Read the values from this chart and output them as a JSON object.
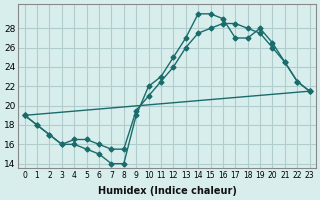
{
  "xlabel": "Humidex (Indice chaleur)",
  "bg_color": "#d8eeed",
  "grid_color": "#b0cccc",
  "line_color": "#1a6b6b",
  "line1_x": [
    0,
    1,
    2,
    3,
    4,
    5,
    6,
    7,
    8,
    9,
    10,
    11,
    12,
    13,
    14,
    15,
    16,
    17,
    18,
    19,
    20,
    21,
    22,
    23
  ],
  "line1_y": [
    19.0,
    18.0,
    17.0,
    16.0,
    16.0,
    15.5,
    15.0,
    14.0,
    14.0,
    19.0,
    22.0,
    23.0,
    25.0,
    27.0,
    29.5,
    29.5,
    29.0,
    27.0,
    27.0,
    28.0,
    26.5,
    24.5,
    22.5,
    21.5
  ],
  "line2_x": [
    0,
    1,
    2,
    3,
    4,
    5,
    6,
    7,
    8,
    9,
    10,
    11,
    12,
    13,
    14,
    15,
    16,
    17,
    18,
    19,
    20,
    21,
    22,
    23
  ],
  "line2_y": [
    19.0,
    18.0,
    17.0,
    16.0,
    16.5,
    16.5,
    16.0,
    15.5,
    15.5,
    19.5,
    21.0,
    22.5,
    24.0,
    26.0,
    27.5,
    28.0,
    28.5,
    28.5,
    28.0,
    27.5,
    26.0,
    24.5,
    22.5,
    21.5
  ],
  "line3_x": [
    0,
    23
  ],
  "line3_y": [
    19.0,
    21.5
  ],
  "ylim": [
    13.5,
    30.5
  ],
  "xlim": [
    -0.5,
    23.5
  ],
  "yticks": [
    14,
    16,
    18,
    20,
    22,
    24,
    26,
    28
  ],
  "xticks": [
    0,
    1,
    2,
    3,
    4,
    5,
    6,
    7,
    8,
    9,
    10,
    11,
    12,
    13,
    14,
    15,
    16,
    17,
    18,
    19,
    20,
    21,
    22,
    23
  ],
  "xtick_labels": [
    "0",
    "1",
    "2",
    "3",
    "4",
    "5",
    "6",
    "7",
    "8",
    "9",
    "10",
    "11",
    "12",
    "13",
    "14",
    "15",
    "16",
    "17",
    "18",
    "19",
    "20",
    "21",
    "22",
    "23"
  ]
}
